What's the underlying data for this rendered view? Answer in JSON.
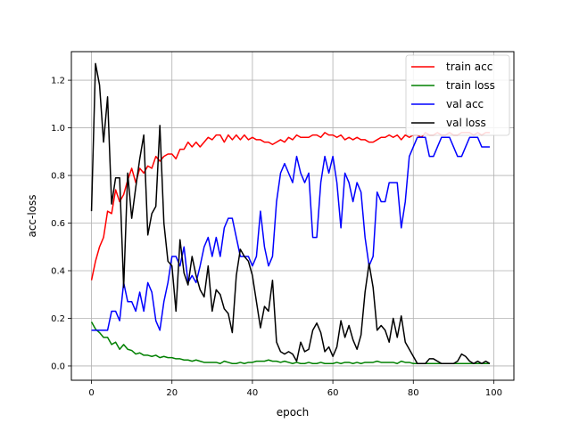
{
  "chart_data": {
    "type": "line",
    "xlabel": "epoch",
    "ylabel": "acc-loss",
    "xlim": [
      -5,
      105
    ],
    "ylim": [
      -0.06,
      1.32
    ],
    "xticks": [
      0,
      20,
      40,
      60,
      80,
      100
    ],
    "yticks": [
      0.0,
      0.2,
      0.4,
      0.6,
      0.8,
      1.0,
      1.2
    ],
    "grid": true,
    "legend_position": "top-right",
    "x": [
      0,
      1,
      2,
      3,
      4,
      5,
      6,
      7,
      8,
      9,
      10,
      11,
      12,
      13,
      14,
      15,
      16,
      17,
      18,
      19,
      20,
      21,
      22,
      23,
      24,
      25,
      26,
      27,
      28,
      29,
      30,
      31,
      32,
      33,
      34,
      35,
      36,
      37,
      38,
      39,
      40,
      41,
      42,
      43,
      44,
      45,
      46,
      47,
      48,
      49,
      50,
      51,
      52,
      53,
      54,
      55,
      56,
      57,
      58,
      59,
      60,
      61,
      62,
      63,
      64,
      65,
      66,
      67,
      68,
      69,
      70,
      71,
      72,
      73,
      74,
      75,
      76,
      77,
      78,
      79,
      80,
      81,
      82,
      83,
      84,
      85,
      86,
      87,
      88,
      89,
      90,
      91,
      92,
      93,
      94,
      95,
      96,
      97,
      98,
      99
    ],
    "series": [
      {
        "name": "train acc",
        "color": "#ff0000",
        "values": [
          0.36,
          0.44,
          0.5,
          0.54,
          0.65,
          0.64,
          0.74,
          0.69,
          0.72,
          0.78,
          0.83,
          0.77,
          0.83,
          0.81,
          0.84,
          0.83,
          0.88,
          0.86,
          0.88,
          0.89,
          0.89,
          0.87,
          0.91,
          0.91,
          0.94,
          0.92,
          0.94,
          0.92,
          0.94,
          0.96,
          0.95,
          0.97,
          0.97,
          0.94,
          0.97,
          0.95,
          0.97,
          0.95,
          0.97,
          0.95,
          0.96,
          0.95,
          0.95,
          0.94,
          0.94,
          0.93,
          0.94,
          0.95,
          0.94,
          0.96,
          0.95,
          0.97,
          0.96,
          0.96,
          0.96,
          0.97,
          0.97,
          0.96,
          0.98,
          0.97,
          0.97,
          0.96,
          0.97,
          0.95,
          0.96,
          0.95,
          0.96,
          0.95,
          0.95,
          0.94,
          0.94,
          0.95,
          0.96,
          0.96,
          0.97,
          0.96,
          0.97,
          0.95,
          0.97,
          0.96,
          0.97,
          0.97,
          0.96,
          0.98,
          0.97,
          0.97,
          0.98,
          0.97,
          0.97,
          0.98,
          0.97,
          0.97,
          0.98,
          0.98,
          0.98,
          0.97,
          0.98,
          0.97,
          0.98,
          0.98
        ]
      },
      {
        "name": "train loss",
        "color": "#008000",
        "values": [
          0.185,
          0.155,
          0.14,
          0.12,
          0.12,
          0.09,
          0.1,
          0.07,
          0.09,
          0.07,
          0.065,
          0.05,
          0.055,
          0.045,
          0.045,
          0.04,
          0.045,
          0.035,
          0.04,
          0.035,
          0.035,
          0.03,
          0.03,
          0.025,
          0.025,
          0.02,
          0.025,
          0.02,
          0.015,
          0.015,
          0.015,
          0.015,
          0.01,
          0.02,
          0.015,
          0.01,
          0.01,
          0.015,
          0.01,
          0.015,
          0.015,
          0.02,
          0.02,
          0.02,
          0.025,
          0.02,
          0.02,
          0.015,
          0.02,
          0.015,
          0.01,
          0.015,
          0.01,
          0.01,
          0.015,
          0.01,
          0.01,
          0.015,
          0.01,
          0.01,
          0.01,
          0.015,
          0.01,
          0.015,
          0.015,
          0.01,
          0.015,
          0.01,
          0.015,
          0.015,
          0.015,
          0.02,
          0.015,
          0.015,
          0.015,
          0.015,
          0.01,
          0.02,
          0.015,
          0.015,
          0.01,
          0.01,
          0.01,
          0.01,
          0.01,
          0.01,
          0.01,
          0.01,
          0.01,
          0.01,
          0.01,
          0.01,
          0.01,
          0.01,
          0.01,
          0.01,
          0.01,
          0.01,
          0.01,
          0.01
        ]
      },
      {
        "name": "val acc",
        "color": "#0000ff",
        "values": [
          0.15,
          0.15,
          0.15,
          0.15,
          0.15,
          0.23,
          0.23,
          0.19,
          0.35,
          0.27,
          0.27,
          0.23,
          0.31,
          0.23,
          0.35,
          0.31,
          0.19,
          0.15,
          0.27,
          0.35,
          0.46,
          0.46,
          0.42,
          0.5,
          0.35,
          0.38,
          0.35,
          0.42,
          0.5,
          0.54,
          0.46,
          0.54,
          0.46,
          0.58,
          0.62,
          0.62,
          0.54,
          0.46,
          0.46,
          0.46,
          0.42,
          0.46,
          0.65,
          0.5,
          0.42,
          0.46,
          0.69,
          0.81,
          0.85,
          0.81,
          0.77,
          0.88,
          0.81,
          0.77,
          0.81,
          0.54,
          0.54,
          0.77,
          0.88,
          0.81,
          0.88,
          0.77,
          0.58,
          0.81,
          0.77,
          0.69,
          0.77,
          0.73,
          0.54,
          0.42,
          0.46,
          0.73,
          0.69,
          0.69,
          0.77,
          0.77,
          0.77,
          0.58,
          0.69,
          0.88,
          0.92,
          0.96,
          0.96,
          0.96,
          0.88,
          0.88,
          0.92,
          0.96,
          0.96,
          0.96,
          0.92,
          0.88,
          0.88,
          0.92,
          0.96,
          0.96,
          0.96,
          0.92,
          0.92,
          0.92
        ]
      },
      {
        "name": "val loss",
        "color": "#000000",
        "values": [
          0.65,
          1.27,
          1.18,
          0.94,
          1.13,
          0.68,
          0.79,
          0.79,
          0.33,
          0.81,
          0.62,
          0.75,
          0.87,
          0.97,
          0.55,
          0.64,
          0.67,
          1.01,
          0.6,
          0.44,
          0.42,
          0.23,
          0.53,
          0.39,
          0.34,
          0.46,
          0.38,
          0.32,
          0.29,
          0.42,
          0.23,
          0.32,
          0.3,
          0.24,
          0.22,
          0.14,
          0.38,
          0.49,
          0.46,
          0.44,
          0.38,
          0.27,
          0.16,
          0.25,
          0.23,
          0.36,
          0.1,
          0.06,
          0.05,
          0.06,
          0.05,
          0.02,
          0.1,
          0.06,
          0.07,
          0.15,
          0.18,
          0.14,
          0.06,
          0.08,
          0.04,
          0.08,
          0.19,
          0.12,
          0.17,
          0.11,
          0.07,
          0.13,
          0.31,
          0.43,
          0.33,
          0.15,
          0.17,
          0.15,
          0.1,
          0.2,
          0.12,
          0.21,
          0.1,
          0.07,
          0.04,
          0.01,
          0.01,
          0.01,
          0.03,
          0.03,
          0.02,
          0.01,
          0.01,
          0.01,
          0.01,
          0.02,
          0.05,
          0.04,
          0.02,
          0.01,
          0.02,
          0.01,
          0.02,
          0.01
        ]
      }
    ]
  }
}
